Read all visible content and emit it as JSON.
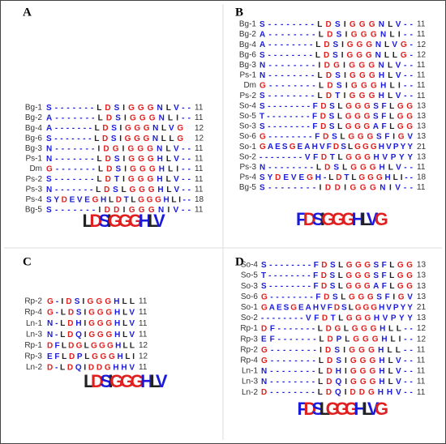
{
  "panels": [
    {
      "label": "A",
      "logo": "LDSIGGGHLV",
      "rows": [
        {
          "name": "Bg-1",
          "seq": "S-------LDSIGGGNLV--",
          "len": "11"
        },
        {
          "name": "Bg-2",
          "seq": "A-------LDSIGGGNLI--",
          "len": "11"
        },
        {
          "name": "Bg-4",
          "seq": "A-------LDSIGGGNLVG",
          "len": "12"
        },
        {
          "name": "Bg-6",
          "seq": "S-------LDSIGGGNLLG",
          "len": "12"
        },
        {
          "name": "Bg-3",
          "seq": "N-------IDGIGGGNLV--",
          "len": "11"
        },
        {
          "name": "Ps-1",
          "seq": "N-------LDSIGGGHLV--",
          "len": "11"
        },
        {
          "name": "Dm",
          "seq": "G-------LDSIGGGHLI--",
          "len": "11"
        },
        {
          "name": "Ps-2",
          "seq": "S-------LDTIGGGHLV--",
          "len": "11"
        },
        {
          "name": "Ps-3",
          "seq": "N-------LDSLGGGHLV--",
          "len": "11"
        },
        {
          "name": "Ps-4",
          "seq": "SYDEVEGHLDTLGGGHLI--",
          "len": "18"
        },
        {
          "name": "Bg-5",
          "seq": "S-------IDDIGGGNIV--",
          "len": "11"
        }
      ]
    },
    {
      "label": "B",
      "logo": "FDSIGGGHLVG",
      "rows": [
        {
          "name": "Bg-1",
          "seq": "S--------LDSIGGGNLV--",
          "len": "11"
        },
        {
          "name": "Bg-2",
          "seq": "A--------LDSIGGGNLI--",
          "len": "11"
        },
        {
          "name": "Bg-4",
          "seq": "A--------LDSIGGGNLVG-",
          "len": "12"
        },
        {
          "name": "Bg-6",
          "seq": "S--------LDSIGGGNLLG-",
          "len": "12"
        },
        {
          "name": "Bg-3",
          "seq": "N--------IDGIGGGNLV--",
          "len": "11"
        },
        {
          "name": "Ps-1",
          "seq": "N--------LDSIGGGHLV--",
          "len": "11"
        },
        {
          "name": "Dm",
          "seq": "G--------LDSIGGGHLI--",
          "len": "11"
        },
        {
          "name": "Ps-2",
          "seq": "S--------LDTIGGGHLV--",
          "len": "11"
        },
        {
          "name": "So-4",
          "seq": "S--------FDSLGGGSFLGG",
          "len": "13"
        },
        {
          "name": "So-5",
          "seq": "T--------FDSLGGGSFLGG",
          "len": "13"
        },
        {
          "name": "So-3",
          "seq": "S--------FDSLGGGAFLGG",
          "len": "13"
        },
        {
          "name": "So-6",
          "seq": "G--------FDSLGGGSFIGV",
          "len": "13"
        },
        {
          "name": "So-1",
          "seq": "GAESGEAHVFDSLGGGHVPYY",
          "len": "21"
        },
        {
          "name": "So-2",
          "seq": "--------VFDTLGGGHVPYY",
          "len": "13"
        },
        {
          "name": "Ps-3",
          "seq": "N--------LDSLGGGHLV--",
          "len": "11"
        },
        {
          "name": "Ps-4",
          "seq": "SYDEVEGH-LDTLGGGHLI--",
          "len": "18"
        },
        {
          "name": "Bg-5",
          "seq": "S--------IDDIGGGNIV--",
          "len": "11"
        }
      ]
    },
    {
      "label": "C",
      "logo": "LDSIGGGHLV",
      "rows": [
        {
          "name": "Rp-2",
          "seq": "G-IDSIGGGHLL",
          "len": "11"
        },
        {
          "name": "Rp-4",
          "seq": "G-LDSIGGGHLV",
          "len": "11"
        },
        {
          "name": "Ln-1",
          "seq": "N-LDHIGGGHLV",
          "len": "11"
        },
        {
          "name": "Ln-3",
          "seq": "N-LDQIGGGHLV",
          "len": "11"
        },
        {
          "name": "Rp-1",
          "seq": "DFLDGLGGGHLL",
          "len": "12"
        },
        {
          "name": "Rp-3",
          "seq": "EFLDPLGGGHLI",
          "len": "12"
        },
        {
          "name": "Ln-2",
          "seq": "D-LDQIDDGHHV",
          "len": "11"
        }
      ]
    },
    {
      "label": "D",
      "logo": "FDSLGGGHLVG",
      "rows": [
        {
          "name": "So-4",
          "seq": "S--------FDSLGGGSFLGG",
          "len": "13"
        },
        {
          "name": "So-5",
          "seq": "T--------FDSLGGGSFLGG",
          "len": "13"
        },
        {
          "name": "So-3",
          "seq": "S--------FDSLGGGAFLGG",
          "len": "13"
        },
        {
          "name": "So-6",
          "seq": "G--------FDSLGGGSFIGV",
          "len": "13"
        },
        {
          "name": "So-1",
          "seq": "GAESGEAHVFDSLGGGHVPYY",
          "len": "21"
        },
        {
          "name": "So-2",
          "seq": "--------VFDTLGGGHVPYY",
          "len": "13"
        },
        {
          "name": "Rp-1",
          "seq": "DF-------LDGLGGGHLL--",
          "len": "12"
        },
        {
          "name": "Rp-3",
          "seq": "EF-------LDPLGGGHLI--",
          "len": "12"
        },
        {
          "name": "Rp-2",
          "seq": "G--------IDSIGGGHLL--",
          "len": "11"
        },
        {
          "name": "Rp-4",
          "seq": "G--------LDSIGGGHLV--",
          "len": "11"
        },
        {
          "name": "Ln-1",
          "seq": "N--------LDHIGGGHLV--",
          "len": "11"
        },
        {
          "name": "Ln-3",
          "seq": "N--------LDQIGGGHLV--",
          "len": "11"
        },
        {
          "name": "Ln-2",
          "seq": "D--------LDQIDDGHHV--",
          "len": "11"
        }
      ]
    }
  ]
}
